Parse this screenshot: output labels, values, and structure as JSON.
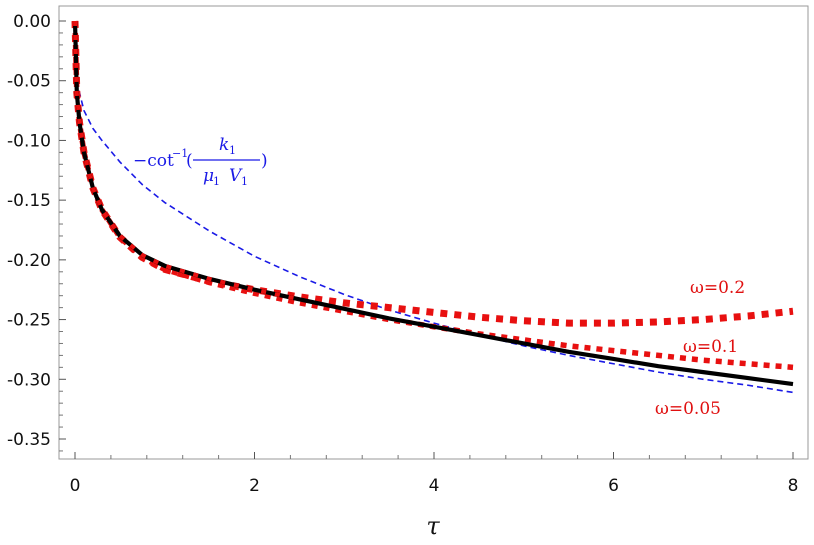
{
  "chart_data": {
    "type": "line",
    "title": "",
    "xlabel": "τ",
    "ylabel": "",
    "xlim": [
      0,
      8
    ],
    "ylim": [
      -0.37,
      0.0
    ],
    "x_ticks": [
      "0",
      "2",
      "4",
      "6",
      "8"
    ],
    "y_ticks": [
      "0.00",
      "-0.05",
      "-0.10",
      "-0.15",
      "-0.20",
      "-0.25",
      "-0.30",
      "-0.35"
    ],
    "grid": false,
    "annotations": {
      "omega_02": "ω=0.2",
      "omega_01": "ω=0.1",
      "omega_005": "ω=0.05",
      "formula_prefix": "−cot",
      "formula_exponent": "−1",
      "formula_open": "(",
      "formula_num": "k",
      "formula_num_sub": "1",
      "formula_den_mu": "μ",
      "formula_den_mu_sub": "1",
      "formula_den_v": "V",
      "formula_den_v_sub": "1",
      "formula_close": ")"
    },
    "colors": {
      "black": "#000000",
      "red": "#e81010",
      "blue": "#1a1ae6",
      "frame": "#999999"
    },
    "series": [
      {
        "key": "blue_dashed",
        "x": [
          0.0,
          0.02,
          0.05,
          0.1,
          0.2,
          0.3,
          0.5,
          0.75,
          1.0,
          1.5,
          2.0,
          2.5,
          3.0,
          3.5,
          4.0,
          4.5,
          5.0,
          5.5,
          6.0,
          6.5,
          7.0,
          7.5,
          8.0
        ],
        "y": [
          0.0,
          -0.05,
          -0.06,
          -0.075,
          -0.09,
          -0.1,
          -0.118,
          -0.137,
          -0.152,
          -0.176,
          -0.197,
          -0.214,
          -0.229,
          -0.242,
          -0.253,
          -0.263,
          -0.272,
          -0.28,
          -0.287,
          -0.294,
          -0.3,
          -0.305,
          -0.311
        ]
      },
      {
        "key": "omega_005",
        "x": [
          0.0,
          0.02,
          0.05,
          0.1,
          0.2,
          0.3,
          0.5,
          0.75,
          1.0,
          1.5,
          2.0,
          2.5,
          3.0,
          3.5,
          4.0,
          4.5,
          5.0,
          5.5,
          6.0,
          6.5,
          7.0,
          7.5,
          8.0
        ],
        "y": [
          0.0,
          -0.06,
          -0.085,
          -0.11,
          -0.14,
          -0.158,
          -0.18,
          -0.196,
          -0.205,
          -0.216,
          -0.225,
          -0.233,
          -0.241,
          -0.249,
          -0.256,
          -0.263,
          -0.27,
          -0.277,
          -0.283,
          -0.289,
          -0.294,
          -0.299,
          -0.304
        ]
      },
      {
        "key": "omega_01",
        "x": [
          0.0,
          0.02,
          0.05,
          0.1,
          0.2,
          0.3,
          0.5,
          0.75,
          1.0,
          1.5,
          2.0,
          2.5,
          3.0,
          3.5,
          4.0,
          4.5,
          5.0,
          5.5,
          6.0,
          6.5,
          7.0,
          7.5,
          8.0
        ],
        "y": [
          0.0,
          -0.06,
          -0.085,
          -0.11,
          -0.14,
          -0.158,
          -0.181,
          -0.198,
          -0.208,
          -0.219,
          -0.228,
          -0.236,
          -0.243,
          -0.25,
          -0.256,
          -0.262,
          -0.267,
          -0.272,
          -0.276,
          -0.28,
          -0.284,
          -0.287,
          -0.29
        ]
      },
      {
        "key": "omega_02",
        "x": [
          0.0,
          0.02,
          0.05,
          0.1,
          0.2,
          0.3,
          0.5,
          0.75,
          1.0,
          1.5,
          2.0,
          2.5,
          3.0,
          3.5,
          4.0,
          4.5,
          5.0,
          5.5,
          6.0,
          6.5,
          7.0,
          7.5,
          8.0
        ],
        "y": [
          0.0,
          -0.06,
          -0.085,
          -0.11,
          -0.14,
          -0.158,
          -0.181,
          -0.198,
          -0.208,
          -0.218,
          -0.225,
          -0.231,
          -0.236,
          -0.24,
          -0.244,
          -0.248,
          -0.251,
          -0.253,
          -0.253,
          -0.252,
          -0.25,
          -0.247,
          -0.243
        ]
      }
    ]
  }
}
